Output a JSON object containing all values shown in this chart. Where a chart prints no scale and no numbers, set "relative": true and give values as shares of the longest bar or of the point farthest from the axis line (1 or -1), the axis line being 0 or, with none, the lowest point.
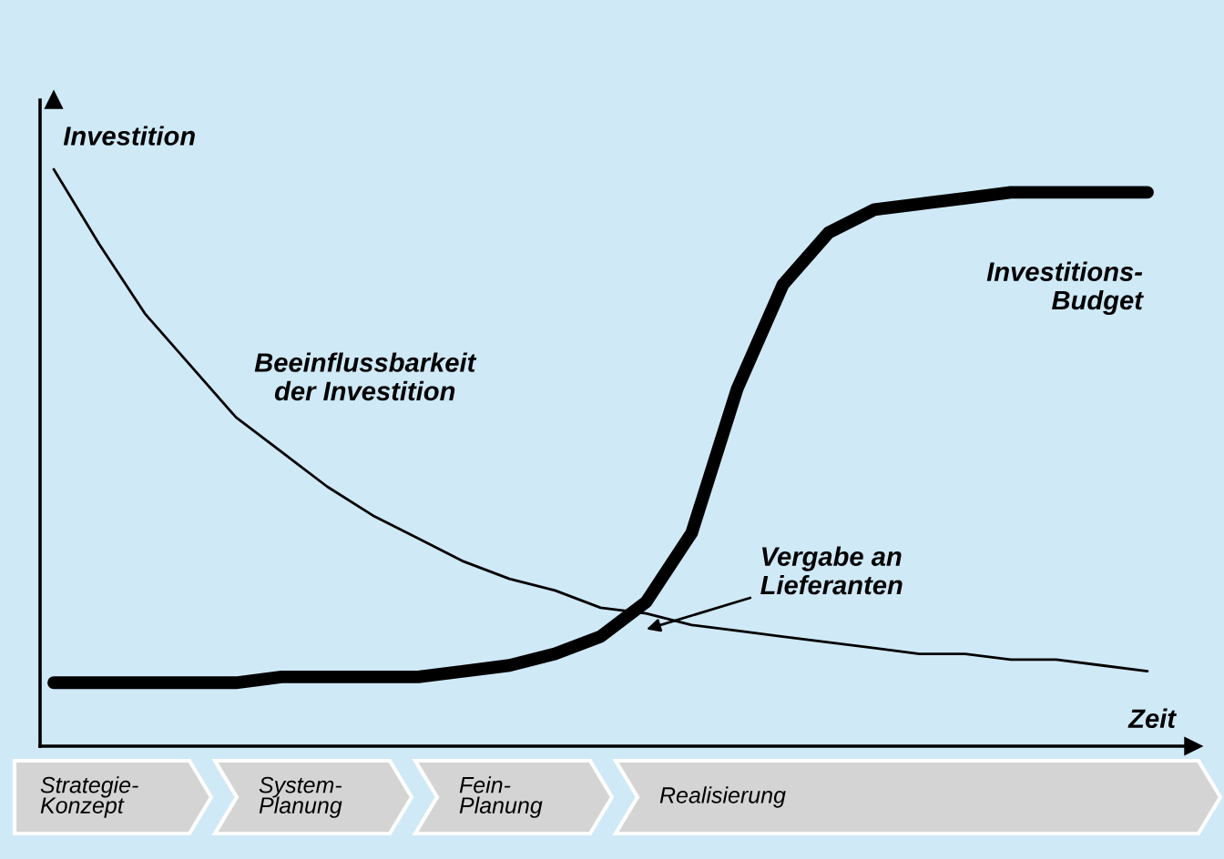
{
  "chart_data": {
    "type": "line",
    "relative": true,
    "xlabel": "Zeit",
    "ylabel": "Investition",
    "categories": [
      null,
      null,
      null,
      null,
      null,
      null,
      null,
      null,
      null,
      null,
      null,
      null,
      null,
      null,
      null,
      null,
      null,
      null,
      null,
      null,
      null,
      null,
      null,
      null,
      null
    ],
    "series": [
      {
        "name": "Beeinflussbarkeit der Investition",
        "color": "#000000",
        "values": [
          1.0,
          0.87,
          0.75,
          0.66,
          0.57,
          0.51,
          0.45,
          0.4,
          0.36,
          0.32,
          0.29,
          0.27,
          0.24,
          0.23,
          0.21,
          0.2,
          0.19,
          0.18,
          0.17,
          0.16,
          0.16,
          0.15,
          0.15,
          0.14,
          0.13
        ]
      },
      {
        "name": "Investitions-Budget",
        "color": "#000000",
        "values": [
          0.11,
          0.11,
          0.11,
          0.11,
          0.11,
          0.12,
          0.12,
          0.12,
          0.12,
          0.13,
          0.14,
          0.16,
          0.19,
          0.25,
          0.37,
          0.62,
          0.8,
          0.89,
          0.93,
          0.94,
          0.95,
          0.96,
          0.96,
          0.96,
          0.96
        ]
      }
    ],
    "annotations": [
      "Vergabe an Lieferanten",
      "Strategie-Konzept",
      "System-Planung",
      "Fein-Planung",
      "Realisierung"
    ],
    "legend": false
  }
}
